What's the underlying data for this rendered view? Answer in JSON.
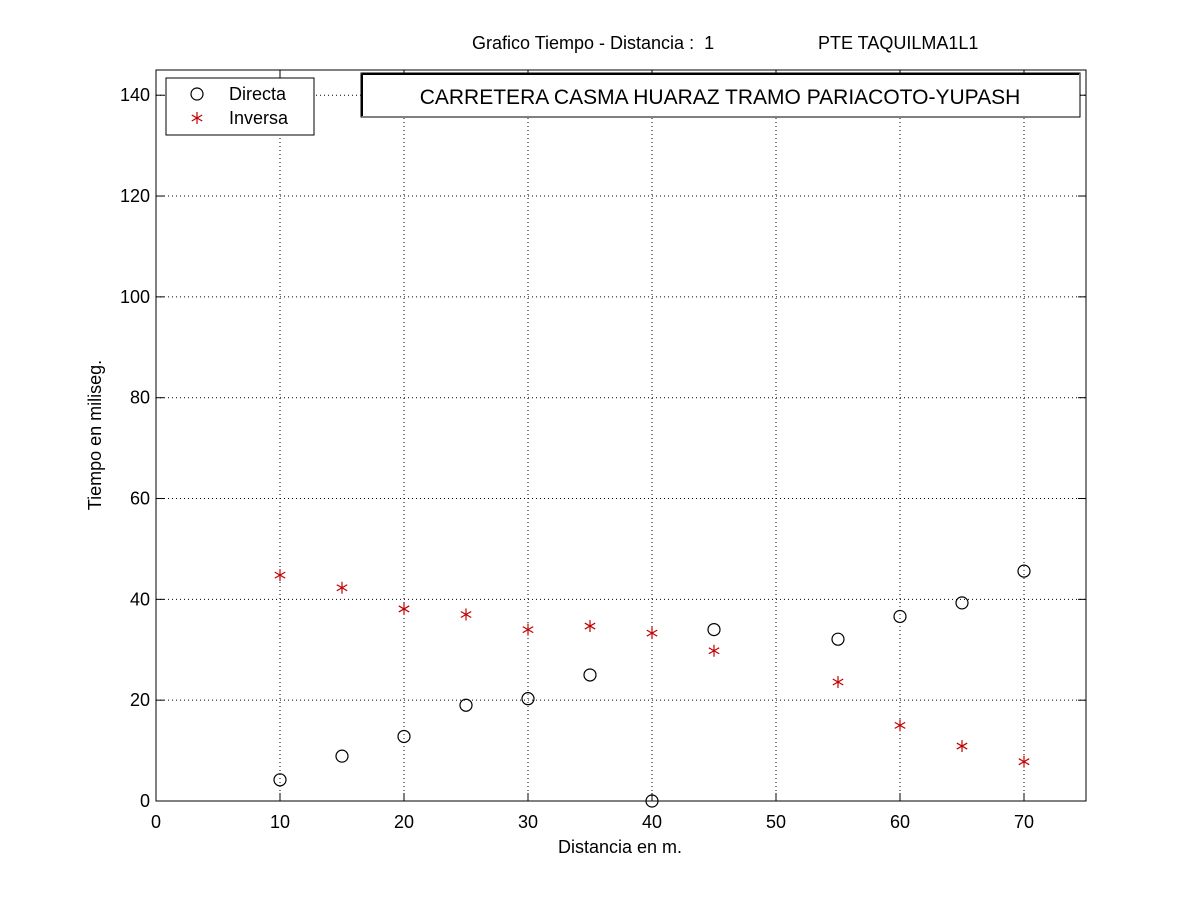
{
  "header": {
    "title_left": "Grafico Tiempo - Distancia :  1",
    "title_right": "PTE TAQUILMA1L1"
  },
  "chart_data": {
    "type": "scatter",
    "title": "Grafico Tiempo - Distancia :  1",
    "annotation": "CARRETERA CASMA HUARAZ TRAMO PARIACOTO-YUPASH",
    "xlabel": "Distancia en m.",
    "ylabel": "Tiempo en miliseg.",
    "xlim": [
      0,
      75
    ],
    "ylim": [
      0,
      145
    ],
    "xticks": [
      0,
      10,
      20,
      30,
      40,
      50,
      60,
      70
    ],
    "yticks": [
      0,
      20,
      40,
      60,
      80,
      100,
      120,
      140
    ],
    "grid": true,
    "legend_position": "top-left",
    "series": [
      {
        "name": "Directa",
        "marker": "circle",
        "color": "#000000",
        "x": [
          10,
          15,
          20,
          25,
          30,
          35,
          40,
          45,
          55,
          60,
          65,
          70
        ],
        "y": [
          4.2,
          8.9,
          12.8,
          19.0,
          20.3,
          25.0,
          0.0,
          34.0,
          32.1,
          36.6,
          39.3,
          45.6
        ]
      },
      {
        "name": "Inversa",
        "marker": "asterisk",
        "color": "#c00000",
        "x": [
          10,
          15,
          20,
          25,
          30,
          35,
          40,
          45,
          55,
          60,
          65,
          70
        ],
        "y": [
          44.8,
          42.3,
          38.1,
          37.0,
          34.0,
          34.7,
          33.3,
          29.8,
          23.6,
          15.0,
          10.9,
          7.8
        ]
      }
    ]
  }
}
